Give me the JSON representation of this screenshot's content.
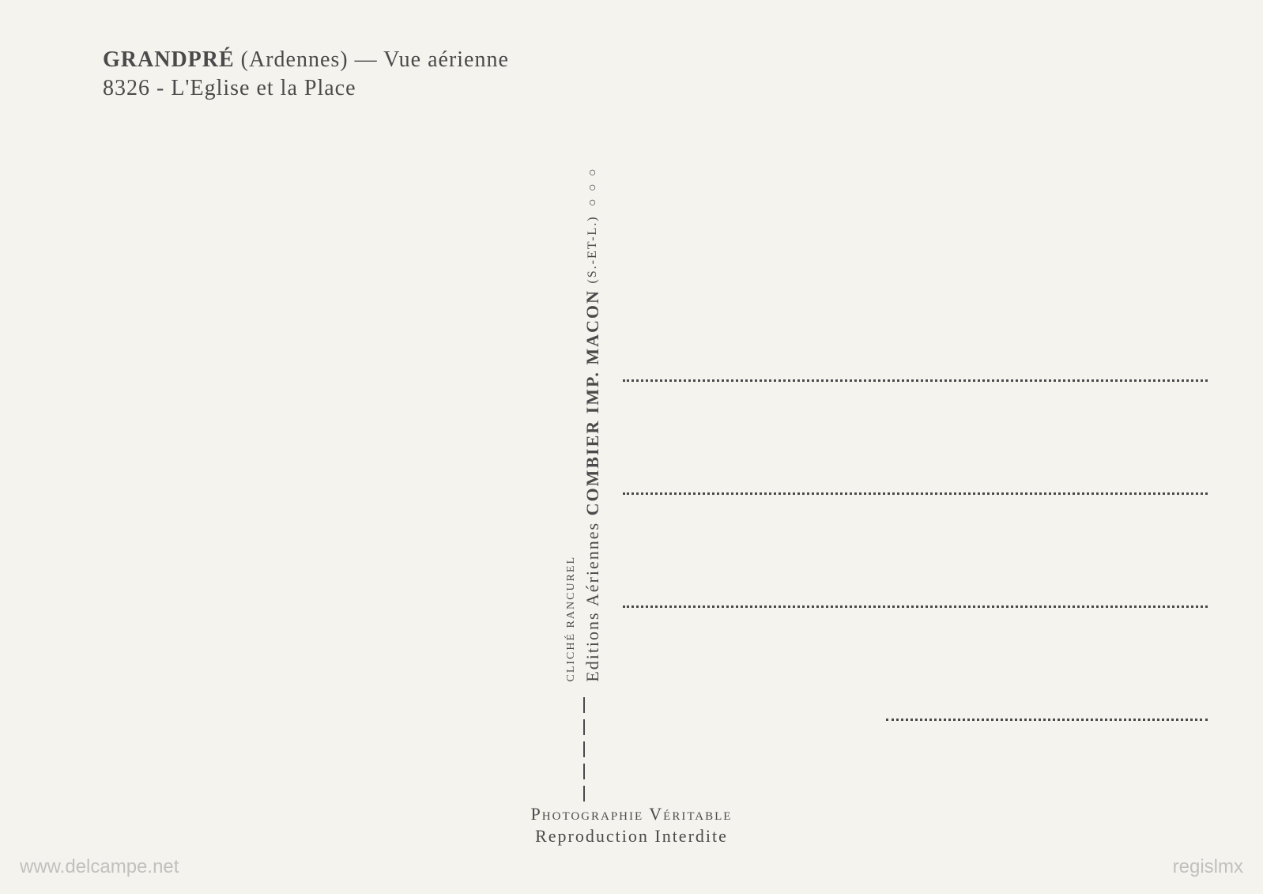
{
  "header": {
    "location_name": "GRANDPRÉ",
    "region": "(Ardennes)",
    "separator": "—",
    "view_type": "Vue aérienne",
    "ref_number": "8326",
    "dash": "-",
    "subject": "L'Eglise et la Place"
  },
  "divider": {
    "circles": "○○○",
    "publisher_prefix": "Editions Aériennes",
    "publisher_bold": "COMBIER IMP. MACON",
    "publisher_suffix": "(S.-ET-L.)",
    "credit_label": "CLICHÉ",
    "credit_name": "RANCUREL"
  },
  "footer": {
    "line1": "Photographie  Véritable",
    "line2": "Reproduction Interdite"
  },
  "watermark": {
    "left": "www.delcampe.net",
    "right": "regislmx"
  },
  "colors": {
    "background": "#f5f3ee",
    "text": "#4a4a4a",
    "watermark": "#b0b0b0"
  },
  "typography": {
    "header_fontsize": 28,
    "vertical_main_fontsize": 22,
    "vertical_sub_fontsize": 14,
    "footer_fontsize": 22,
    "watermark_fontsize": 24
  }
}
